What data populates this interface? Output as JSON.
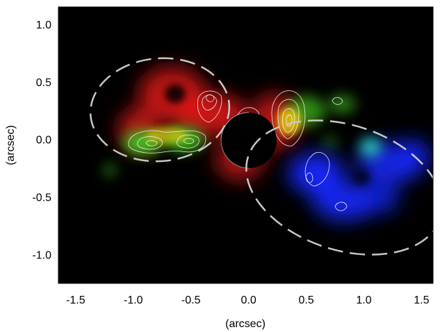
{
  "figure": {
    "xlabel": "(arcsec)",
    "ylabel": "(arcsec)",
    "xlim": [
      -1.65,
      1.6
    ],
    "ylim": [
      -1.25,
      1.15
    ],
    "xticks": [
      {
        "value": -1.5,
        "label": "-1.5"
      },
      {
        "value": -1.0,
        "label": "-1.0"
      },
      {
        "value": -0.5,
        "label": "-0.5"
      },
      {
        "value": 0.0,
        "label": "0.0"
      },
      {
        "value": 0.5,
        "label": "0.5"
      },
      {
        "value": 1.0,
        "label": "1.0"
      },
      {
        "value": 1.5,
        "label": "1.5"
      }
    ],
    "yticks": [
      {
        "value": 1.0,
        "label": "1.0"
      },
      {
        "value": 0.5,
        "label": "0.5"
      },
      {
        "value": 0.0,
        "label": "0.0"
      },
      {
        "value": -0.5,
        "label": "-0.5"
      },
      {
        "value": -1.0,
        "label": "-1.0"
      }
    ],
    "colors": {
      "background": "#000000",
      "red_emission": "#e0181a",
      "green_emission": "#40c020",
      "yellow_emission": "#e8d010",
      "blue_emission": "#1428ff",
      "cyan_emission": "#30d8c8",
      "contour": "#ffffff",
      "ellipse_dash": "#c8c8c8",
      "occulting_disk": "#000000"
    }
  }
}
